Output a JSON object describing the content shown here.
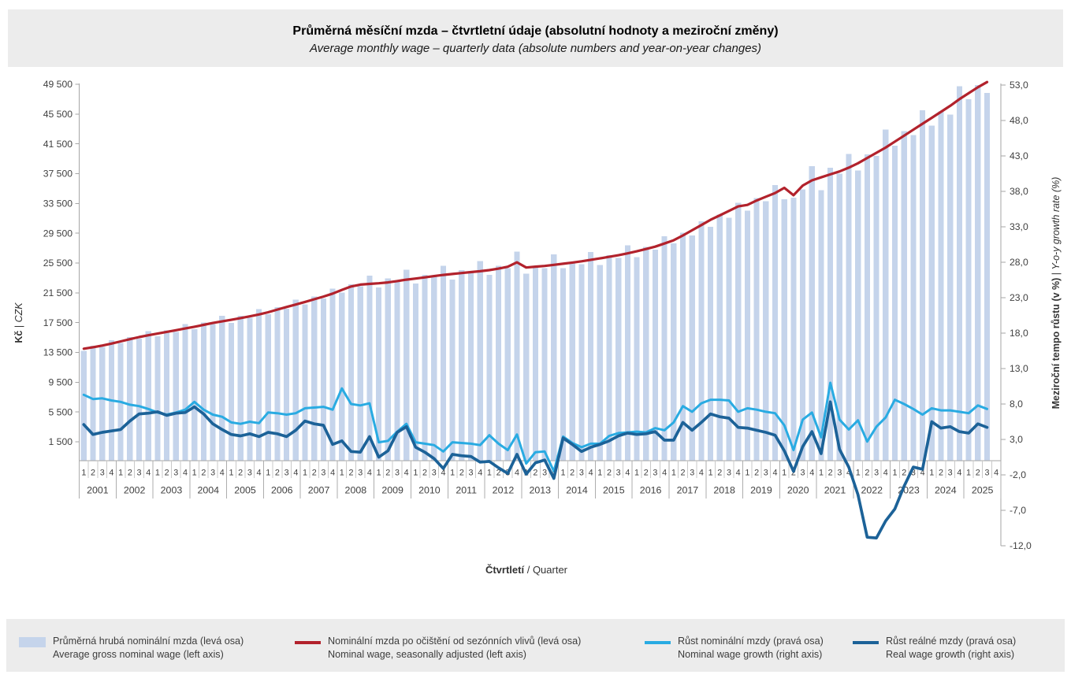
{
  "title": {
    "cs": "Průměrná měsíční mzda – čtvrtletní údaje (absolutní hodnoty a meziroční změny)",
    "en": "Average monthly wage – quarterly data (absolute numbers and year-on-year changes)"
  },
  "left_axis": {
    "label_cs": "Kč",
    "label_en": "CZK",
    "separator": " | ",
    "tick_labels": [
      "49 500",
      "45 500",
      "41 500",
      "37 500",
      "33 500",
      "29 500",
      "25 500",
      "21 500",
      "17 500",
      "13 500",
      "9 500",
      "5 500",
      "1 500"
    ]
  },
  "right_axis": {
    "label_cs": "Meziroční tempo růstu (v %)",
    "label_en": "Y-o-y growth rate (%)",
    "separator": " | ",
    "tick_labels": [
      "53,0",
      "48,0",
      "43,0",
      "38,0",
      "33,0",
      "28,0",
      "23,0",
      "18,0",
      "13,0",
      "8,0",
      "3,0",
      "-2,0",
      "-7,0",
      "-12,0"
    ]
  },
  "x_axis": {
    "label_cs": "Čtvrtletí",
    "label_en": "Quarter",
    "separator": " / ",
    "quarter_labels": [
      "1",
      "2",
      "3",
      "4"
    ],
    "years": [
      "2001",
      "2002",
      "2003",
      "2004",
      "2005",
      "2006",
      "2007",
      "2008",
      "2009",
      "2010",
      "2011",
      "2012",
      "2013",
      "2014",
      "2015",
      "2016",
      "2017",
      "2018",
      "2019",
      "2020",
      "2021",
      "2022",
      "2023",
      "2024",
      "2025"
    ],
    "cells": 100
  },
  "legend": [
    {
      "cs": "Průměrná hrubá nominální mzda (levá osa)",
      "en": "Average gross nominal wage (left axis)",
      "type": "bar",
      "color": "#c5d4eb"
    },
    {
      "cs": "Nominální mzda po očištění od sezónních vlivů (levá osa)",
      "en": "Nominal wage, seasonally adjusted (left axis)",
      "type": "line",
      "color": "#b2222c"
    },
    {
      "cs": "Růst nominální mzdy (pravá osa)",
      "en": "Nominal wage growth (right axis)",
      "type": "line",
      "color": "#29abe2"
    },
    {
      "cs": "Růst reálné mzdy (pravá osa)",
      "en": "Real wage growth (right axis)",
      "type": "line",
      "color": "#1c6298"
    }
  ],
  "colors": {
    "bar": "#c5d4eb",
    "seasonally_adjusted_line": "#b2222c",
    "nominal_growth_line": "#29abe2",
    "real_growth_line": "#1c6298",
    "axis": "#a6a6a6",
    "quarter_separator": "#c9c9c9",
    "band_background": "#ececec",
    "tick_text": "#404040"
  },
  "chart_data": {
    "type": "combo",
    "title": "Průměrná měsíční mzda – čtvrtletní údaje (absolutní hodnoty a meziroční změny)",
    "subtitle": "Average monthly wage – quarterly data (absolute numbers and year-on-year changes)",
    "xlabel": "Čtvrtletí / Quarter",
    "x_note": "Quarters 2001Q1–2025Q3 (99 data points; axis shows empty 2025Q4 cell)",
    "grid": false,
    "legend_position": "bottom",
    "axes": {
      "left": {
        "label": "Kč | CZK",
        "min": 1500,
        "max": 49500,
        "step": 4000
      },
      "right": {
        "label": "Meziroční tempo růstu (v %) | Y-o-y growth rate (%)",
        "min": -12,
        "max": 53,
        "step": 5
      }
    },
    "series": [
      {
        "name": "Průměrná hrubá nominální mzda",
        "name_en": "Average gross nominal wage",
        "type": "bar",
        "axis": "left",
        "color": "#c5d4eb",
        "values": [
          13702,
          14421,
          14234,
          15154,
          14794,
          15571,
          15369,
          16362,
          15658,
          16479,
          16266,
          17317,
          16645,
          17518,
          17291,
          18409,
          17482,
          18399,
          18161,
          19335,
          18627,
          19605,
          19351,
          20602,
          19972,
          21020,
          20747,
          22089,
          21530,
          22660,
          22366,
          23812,
          22247,
          23414,
          23111,
          24605,
          22742,
          23936,
          23625,
          25153,
          23306,
          24528,
          24210,
          25776,
          23889,
          25142,
          24816,
          27055,
          24061,
          24953,
          24836,
          26637,
          24806,
          25684,
          25351,
          26990,
          25223,
          26546,
          26202,
          27896,
          26292,
          27672,
          27313,
          29079,
          28117,
          29593,
          29209,
          31097,
          30386,
          31981,
          31566,
          33607,
          32521,
          34227,
          33784,
          35968,
          34077,
          34271,
          35402,
          38525,
          35285,
          38275,
          37499,
          40135,
          37929,
          40086,
          39858,
          43412,
          41265,
          43193,
          42658,
          46013,
          43941,
          45854,
          45412,
          49229,
          47493,
          49402,
          48358
        ]
      },
      {
        "name": "Nominální mzda po očištění od sezónních vlivů",
        "name_en": "Nominal wage, seasonally adjusted",
        "type": "line",
        "axis": "left",
        "color": "#b2222c",
        "values": [
          14000,
          14200,
          14420,
          14680,
          14980,
          15280,
          15560,
          15800,
          16030,
          16260,
          16480,
          16710,
          16950,
          17200,
          17450,
          17670,
          17880,
          18110,
          18340,
          18600,
          18890,
          19250,
          19600,
          19930,
          20280,
          20640,
          21000,
          21400,
          21900,
          22350,
          22600,
          22700,
          22780,
          22900,
          23080,
          23270,
          23420,
          23580,
          23740,
          23900,
          24030,
          24160,
          24280,
          24400,
          24550,
          24750,
          25000,
          25590,
          24900,
          25010,
          25110,
          25260,
          25400,
          25560,
          25730,
          25930,
          26120,
          26330,
          26550,
          26800,
          27080,
          27380,
          27700,
          28120,
          28560,
          29200,
          29900,
          30600,
          31300,
          31900,
          32500,
          33100,
          33300,
          33900,
          34400,
          34900,
          35600,
          34600,
          35900,
          36600,
          37000,
          37400,
          37800,
          38300,
          38900,
          39600,
          40300,
          41000,
          41800,
          42600,
          43400,
          44200,
          45000,
          45800,
          46600,
          47500,
          48300,
          49100,
          49800
        ]
      },
      {
        "name": "Růst nominální mzdy",
        "name_en": "Nominal wage growth",
        "type": "line",
        "axis": "right",
        "color": "#29abe2",
        "values": [
          9.3,
          8.7,
          8.8,
          8.5,
          8.3,
          7.9,
          7.7,
          7.3,
          6.8,
          6.5,
          6.8,
          7.2,
          8.3,
          7.2,
          6.5,
          6.2,
          5.4,
          5.2,
          5.5,
          5.3,
          6.8,
          6.7,
          6.5,
          6.7,
          7.4,
          7.5,
          7.6,
          7.2,
          10.2,
          8.0,
          7.8,
          8.1,
          2.6,
          2.8,
          4.1,
          5.2,
          2.6,
          2.4,
          2.2,
          1.3,
          2.6,
          2.5,
          2.4,
          2.2,
          3.6,
          2.4,
          1.5,
          3.7,
          -0.4,
          1.2,
          1.3,
          -1.5,
          3.4,
          2.5,
          1.9,
          2.4,
          2.4,
          3.5,
          3.9,
          4.0,
          4.1,
          4.0,
          4.6,
          4.3,
          5.4,
          7.7,
          6.9,
          8.1,
          8.6,
          8.6,
          8.5,
          6.9,
          7.4,
          7.2,
          6.9,
          6.7,
          5.0,
          1.5,
          5.8,
          6.8,
          3.3,
          11.0,
          5.8,
          4.4,
          5.7,
          2.7,
          4.8,
          6.1,
          8.6,
          8.0,
          7.3,
          6.5,
          7.4,
          7.1,
          7.1,
          6.9,
          6.7,
          7.8,
          7.3
        ]
      },
      {
        "name": "Růst reálné mzdy",
        "name_en": "Real wage growth",
        "type": "line",
        "axis": "right",
        "color": "#1c6298",
        "values": [
          5.1,
          3.7,
          4.0,
          4.2,
          4.4,
          5.6,
          6.6,
          6.7,
          6.9,
          6.4,
          6.7,
          6.8,
          7.6,
          6.6,
          5.2,
          4.4,
          3.7,
          3.5,
          3.8,
          3.4,
          4.0,
          3.8,
          3.4,
          4.3,
          5.6,
          5.2,
          5.0,
          2.3,
          2.8,
          1.3,
          1.2,
          3.4,
          0.5,
          1.4,
          4.0,
          4.8,
          1.9,
          1.2,
          0.3,
          -1.1,
          0.9,
          0.7,
          0.6,
          -0.2,
          -0.1,
          -1.0,
          -1.8,
          0.9,
          -1.9,
          -0.3,
          0.1,
          -2.5,
          3.2,
          2.3,
          1.3,
          1.9,
          2.3,
          2.8,
          3.5,
          3.9,
          3.7,
          3.8,
          4.1,
          2.9,
          2.9,
          5.4,
          4.3,
          5.4,
          6.6,
          6.2,
          6.0,
          4.7,
          4.6,
          4.3,
          4.0,
          3.6,
          1.4,
          -1.5,
          2.0,
          4.1,
          1.0,
          8.3,
          1.6,
          -0.9,
          -4.8,
          -10.8,
          -10.9,
          -8.5,
          -6.8,
          -3.6,
          -0.9,
          -1.2,
          5.5,
          4.6,
          4.8,
          4.1,
          3.9,
          5.2,
          4.7
        ]
      }
    ]
  }
}
